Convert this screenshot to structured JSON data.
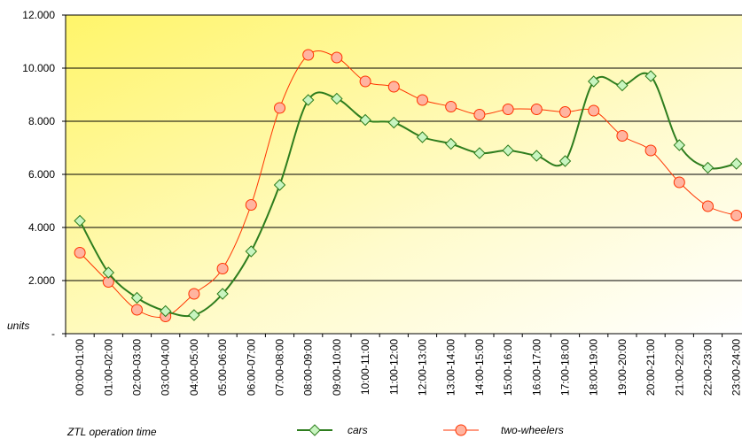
{
  "chart_data": {
    "type": "line",
    "y_label": "units",
    "x_label": "ZTL operation time",
    "categories": [
      "00:00-01:00",
      "01:00-02:00",
      "02:00-03:00",
      "03:00-04:00",
      "04:00-05:00",
      "05:00-06:00",
      "06:00-07:00",
      "07:00-08:00",
      "08:00-09:00",
      "09:00-10:00",
      "10:00-11:00",
      "11:00-12:00",
      "12:00-13:00",
      "13:00-14:00",
      "14:00-15:00",
      "15:00-16:00",
      "16:00-17:00",
      "17:00-18:00",
      "18:00-19:00",
      "19:00-20:00",
      "20:00-21:00",
      "21:00-22:00",
      "22:00-23:00",
      "23:00-24:00"
    ],
    "series": [
      {
        "name": "cars",
        "color": "#2e7d1e",
        "marker": "diamond",
        "marker_fill": "#c8f5c0",
        "values": [
          4250,
          2300,
          1350,
          850,
          700,
          1500,
          3100,
          5600,
          8800,
          8850,
          8050,
          7950,
          7400,
          7150,
          6800,
          6900,
          6700,
          6500,
          9500,
          9350,
          9700,
          7100,
          6250,
          6400
        ]
      },
      {
        "name": "two-wheelers",
        "color": "#ff3300",
        "marker": "circle",
        "marker_fill": "#ffb4a0",
        "values": [
          3050,
          1950,
          900,
          650,
          1500,
          2450,
          4850,
          8500,
          10500,
          10400,
          9500,
          9300,
          8800,
          8550,
          8250,
          8450,
          8450,
          8350,
          8400,
          7450,
          6900,
          5700,
          4800,
          4450
        ]
      }
    ],
    "ylim": [
      0,
      12000
    ],
    "yticks": [
      {
        "value": 0,
        "label": "-"
      },
      {
        "value": 2000,
        "label": "2.000"
      },
      {
        "value": 4000,
        "label": "4.000"
      },
      {
        "value": 6000,
        "label": "6.000"
      },
      {
        "value": 8000,
        "label": "8.000"
      },
      {
        "value": 10000,
        "label": "10.000"
      },
      {
        "value": 12000,
        "label": "12.000"
      }
    ],
    "grid": true,
    "smooth": true,
    "legend": "bottom"
  }
}
